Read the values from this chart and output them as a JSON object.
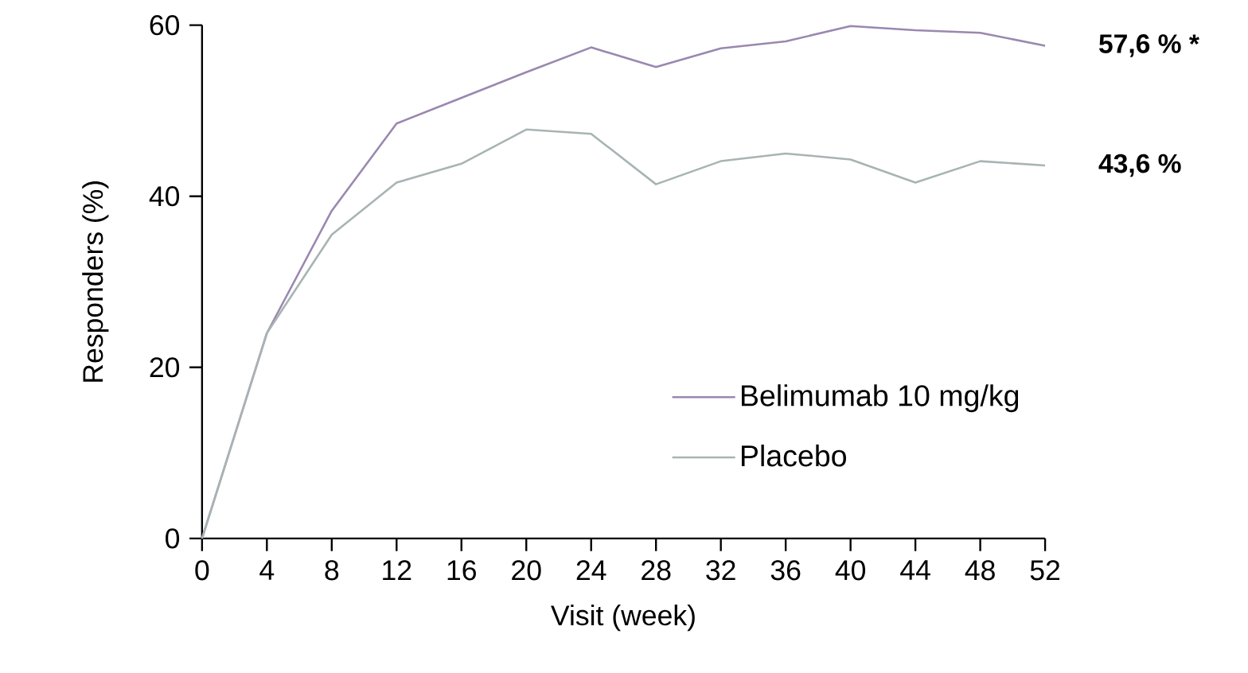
{
  "chart_data": {
    "type": "line",
    "xlabel": "Visit (week)",
    "ylabel": "Responders (%)",
    "x": [
      0,
      4,
      8,
      12,
      16,
      20,
      24,
      28,
      32,
      36,
      40,
      44,
      48,
      52
    ],
    "series": [
      {
        "name": "Belimumab 10 mg/kg",
        "color": "#9a88b0",
        "values": [
          0,
          24,
          38.3,
          48.5,
          51.5,
          54.5,
          57.4,
          55.1,
          57.3,
          58.1,
          59.9,
          59.4,
          59.1,
          57.6
        ]
      },
      {
        "name": "Placebo",
        "color": "#a8b4b4",
        "values": [
          0,
          24,
          35.5,
          41.6,
          43.8,
          47.8,
          47.3,
          41.4,
          44.1,
          45.0,
          44.3,
          41.6,
          44.1,
          43.6
        ]
      }
    ],
    "xlim": [
      0,
      52
    ],
    "xticks": [
      0,
      4,
      8,
      12,
      16,
      20,
      24,
      28,
      32,
      36,
      40,
      44,
      48,
      52
    ],
    "ylim": [
      0,
      60
    ],
    "yticks": [
      0,
      20,
      40,
      60
    ],
    "legend": "bottom right",
    "marker": "none",
    "line_style": "solid",
    "grid": false,
    "annotations": [
      {
        "text": "57,6 %  *",
        "x": 52,
        "y": 57.6
      },
      {
        "text": "43,6 %",
        "x": 52,
        "y": 43.6
      }
    ]
  }
}
